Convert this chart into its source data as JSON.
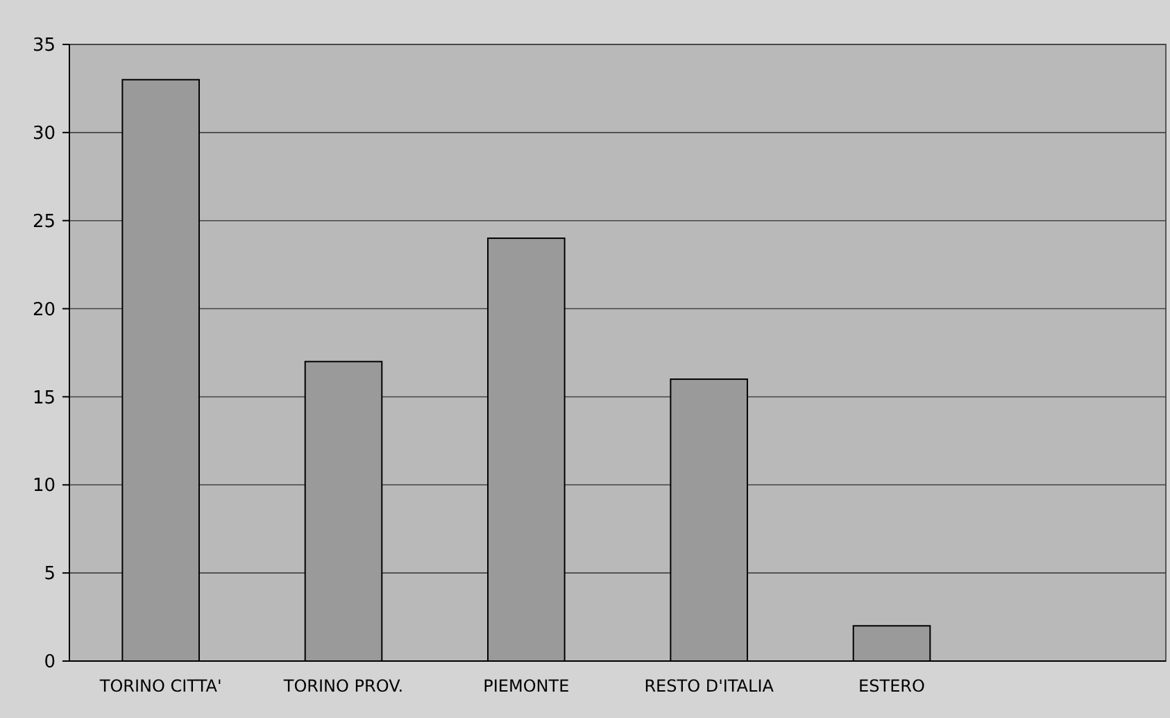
{
  "chart_data": {
    "type": "bar",
    "categories": [
      "TORINO CITTA'",
      "TORINO PROV.",
      "PIEMONTE",
      "RESTO D'ITALIA",
      "ESTERO",
      null
    ],
    "values": [
      33,
      17,
      24,
      16,
      2,
      null
    ],
    "color": "#9a9a9a",
    "ylim": [
      0,
      35
    ],
    "yticks": [
      0,
      5,
      10,
      15,
      20,
      25,
      30,
      35
    ],
    "grid": "y"
  }
}
